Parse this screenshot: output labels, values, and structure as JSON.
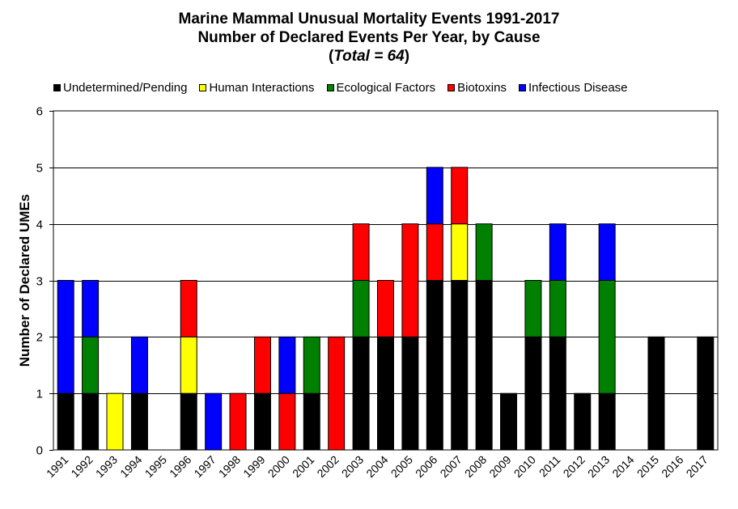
{
  "title": {
    "line1": "Marine Mammal Unusual Mortality Events 1991-2017",
    "line2": "Number of Declared Events Per Year, by Cause",
    "line3_open": "(",
    "line3_italic": "Total = 64",
    "line3_close": ")"
  },
  "colors": {
    "Undetermined/Pending": "#000000",
    "Human Interactions": "#ffff00",
    "Ecological Factors": "#008000",
    "Biotoxins": "#ff0000",
    "Infectious Disease": "#0000ff"
  },
  "chart_data": {
    "type": "bar",
    "stacked": true,
    "legend_position": "top",
    "grid": true,
    "ylabel": "Number of Declared UMEs",
    "xlabel": "",
    "ylim": [
      0,
      6
    ],
    "yticks": [
      "0",
      "1",
      "2",
      "3",
      "4",
      "5",
      "6"
    ],
    "categories": [
      "1991",
      "1992",
      "1993",
      "1994",
      "1995",
      "1996",
      "1997",
      "1998",
      "1999",
      "2000",
      "2001",
      "2002",
      "2003",
      "2004",
      "2005",
      "2006",
      "2007",
      "2008",
      "2009",
      "2010",
      "2011",
      "2012",
      "2013",
      "2014",
      "2015",
      "2016",
      "2017"
    ],
    "series": [
      {
        "name": "Undetermined/Pending",
        "values": [
          1,
          1,
          0,
          1,
          0,
          1,
          0,
          0,
          1,
          0,
          1,
          0,
          2,
          2,
          2,
          3,
          3,
          3,
          1,
          2,
          2,
          1,
          1,
          0,
          2,
          0,
          2
        ]
      },
      {
        "name": "Human Interactions",
        "values": [
          0,
          0,
          1,
          0,
          0,
          1,
          0,
          0,
          0,
          0,
          0,
          0,
          0,
          0,
          0,
          0,
          1,
          0,
          0,
          0,
          0,
          0,
          0,
          0,
          0,
          0,
          0
        ]
      },
      {
        "name": "Ecological Factors",
        "values": [
          0,
          1,
          0,
          0,
          0,
          0,
          0,
          0,
          0,
          0,
          1,
          0,
          1,
          0,
          0,
          0,
          0,
          1,
          0,
          1,
          1,
          0,
          2,
          0,
          0,
          0,
          0
        ]
      },
      {
        "name": "Biotoxins",
        "values": [
          0,
          0,
          0,
          0,
          0,
          1,
          0,
          1,
          1,
          1,
          0,
          2,
          1,
          1,
          2,
          1,
          1,
          0,
          0,
          0,
          0,
          0,
          0,
          0,
          0,
          0,
          0
        ]
      },
      {
        "name": "Infectious Disease",
        "values": [
          2,
          1,
          0,
          1,
          0,
          0,
          1,
          0,
          0,
          1,
          0,
          0,
          0,
          0,
          0,
          1,
          0,
          0,
          0,
          0,
          1,
          0,
          1,
          0,
          0,
          0,
          0
        ]
      }
    ]
  }
}
